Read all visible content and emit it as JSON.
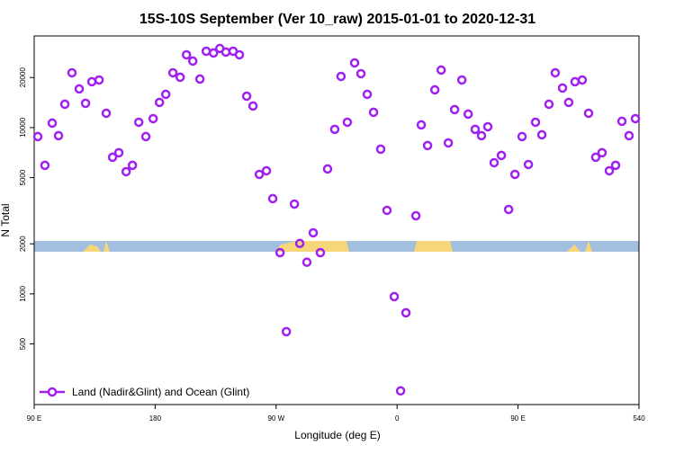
{
  "chart_data": {
    "type": "scatter",
    "title": "15S-10S September (Ver 10_raw)   2015-01-01 to 2020-12-31",
    "x_label": "Longitude (deg E)",
    "y_label": "N Total",
    "log_y": true,
    "legend": "bottom-left",
    "xlim": [
      90,
      540
    ],
    "xticks": [
      {
        "value": 90,
        "label": "90 E"
      },
      180,
      {
        "value": 270,
        "label": "90 W"
      },
      {
        "value": 360,
        "label": "0"
      },
      {
        "value": 450,
        "label": "90 E"
      },
      540
    ],
    "ylim": [
      216,
      35560
    ],
    "yticks": [
      500,
      1000,
      2000,
      5000,
      10000,
      20000
    ],
    "series": [
      {
        "name": "Land (Nadir&Glint) and Ocean (Glint)",
        "color": "#a020f0",
        "x": [
          92.7,
          98.0,
          103.4,
          108.1,
          112.8,
          118.1,
          123.5,
          128.2,
          132.9,
          138.3,
          143.6,
          148.3,
          153.0,
          158.4,
          163.1,
          167.8,
          173.1,
          178.5,
          183.2,
          187.9,
          193.2,
          198.6,
          203.3,
          208.0,
          213.3,
          218.0,
          223.4,
          228.1,
          232.6,
          238.0,
          242.7,
          248.1,
          252.8,
          257.5,
          262.8,
          267.5,
          272.9,
          277.6,
          283.6,
          287.6,
          292.9,
          297.6,
          302.9,
          308.3,
          313.6,
          318.3,
          323.0,
          328.4,
          333.1,
          337.8,
          342.5,
          347.8,
          352.5,
          357.9,
          362.6,
          366.6,
          374.0,
          378.0,
          382.7,
          388.1,
          392.8,
          398.1,
          402.8,
          408.2,
          412.9,
          418.1,
          422.8,
          427.5,
          432.2,
          437.6,
          443.0,
          447.7,
          453.0,
          457.7,
          463.0,
          467.7,
          473.0,
          477.7,
          483.1,
          487.7,
          492.4,
          497.8,
          502.5,
          507.8,
          512.5,
          517.9,
          522.6,
          527.3,
          532.6,
          537.3
        ],
        "values": [
          8830,
          5930,
          10640,
          8940,
          13820,
          21360,
          17080,
          14000,
          18870,
          19330,
          12200,
          6630,
          7060,
          5430,
          5930,
          10770,
          8830,
          11320,
          14170,
          15850,
          21360,
          20090,
          27400,
          25120,
          19580,
          28790,
          28100,
          29900,
          28450,
          28790,
          27400,
          15450,
          13490,
          5230,
          5500,
          3740,
          1770,
          593,
          3470,
          2010,
          1550,
          2330,
          1770,
          5640,
          9760,
          20320,
          10770,
          24490,
          21090,
          15850,
          12360,
          7420,
          3180,
          963,
          261,
          770,
          2950,
          10380,
          7800,
          16870,
          22180,
          8090,
          12830,
          19330,
          12050,
          9760,
          8940,
          10120,
          6150,
          6800,
          3220,
          5230,
          8830,
          6000,
          10770,
          9050,
          13820,
          21360,
          17300,
          14170,
          18870,
          19330,
          12200,
          6630,
          7060,
          5500,
          5930,
          10910,
          8940,
          11320
        ]
      }
    ]
  }
}
